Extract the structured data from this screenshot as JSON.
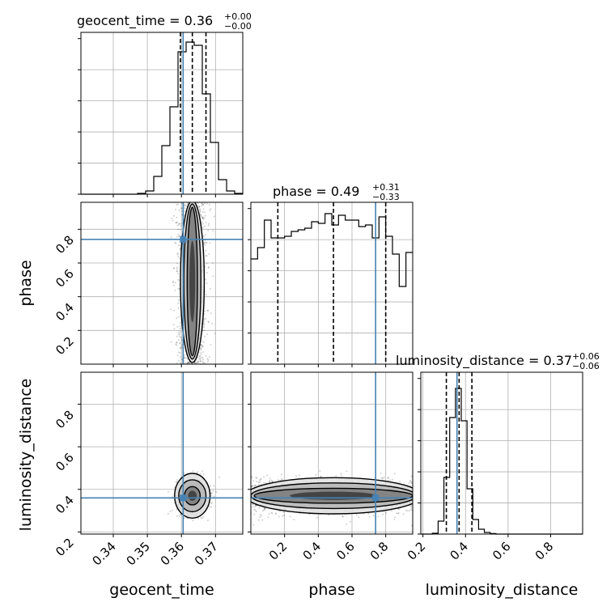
{
  "chart_data": {
    "type": "corner",
    "grid": true,
    "truth_color": "#4682b4",
    "params": [
      {
        "name": "geocent_time",
        "range": [
          0.3305,
          0.378
        ],
        "ticks": [
          0.34,
          0.35,
          0.36,
          0.37
        ],
        "tick_labels": [
          "0.34",
          "0.35",
          "0.36",
          "0.37"
        ],
        "truth": 0.3605,
        "quantiles": [
          0.3597,
          0.3632,
          0.3672
        ],
        "title": {
          "prefix": "geocent_time = 0.36",
          "plus": "+0.00",
          "minus": "−0.00"
        },
        "hist": [
          0,
          0,
          0,
          0,
          0,
          0,
          0,
          0.005,
          0.02,
          0.11,
          0.3,
          0.54,
          0.88,
          0.94,
          0.92,
          0.62,
          0.32,
          0.09,
          0.02,
          0.005
        ]
      },
      {
        "name": "phase",
        "range": [
          0.0,
          0.96
        ],
        "ticks": [
          0.2,
          0.4,
          0.6,
          0.8
        ],
        "tick_labels": [
          "0.2",
          "0.4",
          "0.6",
          "0.8"
        ],
        "truth": 0.74,
        "quantiles": [
          0.16,
          0.49,
          0.8
        ],
        "title": {
          "prefix": "phase = 0.49",
          "plus": "+0.31",
          "minus": "−0.33"
        },
        "hist": [
          0.65,
          0.72,
          0.89,
          0.78,
          0.78,
          0.79,
          0.82,
          0.83,
          0.84,
          0.88,
          0.87,
          0.93,
          0.86,
          0.92,
          0.89,
          0.89,
          0.85,
          0.86,
          0.78,
          0.91,
          0.79,
          0.68,
          0.48,
          0.69
        ]
      },
      {
        "name": "luminosity_distance",
        "range": [
          0.19,
          0.95
        ],
        "ticks": [
          0.2,
          0.4,
          0.6,
          0.8
        ],
        "tick_labels": [
          "0.2",
          "0.4",
          "0.6",
          "0.8"
        ],
        "truth": 0.36,
        "quantiles": [
          0.31,
          0.37,
          0.43
        ],
        "title": {
          "prefix": "luminosity_distance = 0.37",
          "plus": "+0.06",
          "minus": "−0.06"
        },
        "hist": [
          0,
          0,
          0.005,
          0.08,
          0.35,
          0.72,
          0.9,
          0.7,
          0.28,
          0.09,
          0.03,
          0.01,
          0.003,
          0,
          0,
          0,
          0,
          0,
          0,
          0,
          0,
          0,
          0,
          0,
          0,
          0,
          0,
          0
        ]
      }
    ],
    "pairs": [
      {
        "x": "geocent_time",
        "y": "phase",
        "center": [
          0.3632,
          0.49
        ],
        "spread": [
          0.0022,
          0.28
        ],
        "contours": [
          {
            "level": "1-sigma",
            "half_width": [
              0.0015,
              0.44
            ]
          },
          {
            "level": "2-sigma",
            "half_width": [
              0.0025,
              0.46
            ]
          },
          {
            "level": "3-sigma",
            "half_width": [
              0.0035,
              0.48
            ]
          }
        ]
      },
      {
        "x": "geocent_time",
        "y": "luminosity_distance",
        "center": [
          0.3632,
          0.37
        ],
        "spread": [
          0.0022,
          0.04
        ],
        "contours": [
          {
            "level": "1-sigma",
            "half_width": [
              0.0023,
              0.043
            ]
          },
          {
            "level": "2-sigma",
            "half_width": [
              0.004,
              0.075
            ]
          },
          {
            "level": "3-sigma",
            "half_width": [
              0.0052,
              0.105
            ]
          }
        ]
      },
      {
        "x": "phase",
        "y": "luminosity_distance",
        "center": [
          0.49,
          0.37
        ],
        "spread": [
          0.28,
          0.04
        ],
        "contours": [
          {
            "level": "1-sigma",
            "half_width": [
              0.47,
              0.035
            ]
          },
          {
            "level": "2-sigma",
            "half_width": [
              0.49,
              0.06
            ]
          },
          {
            "level": "3-sigma",
            "half_width": [
              0.52,
              0.085
            ]
          }
        ]
      }
    ]
  }
}
